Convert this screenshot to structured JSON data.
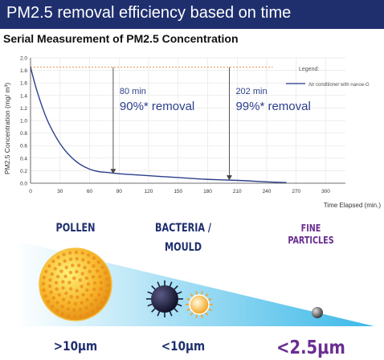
{
  "header": {
    "title": "PM2.5 removal efficiency based on time",
    "banner_color": "#1f2f6e"
  },
  "chart_data": {
    "type": "line",
    "title": "Serial Measurement of PM2.5 Concentration",
    "xlabel": "Time Elapsed (min.)",
    "ylabel": "PM2.5 Concentration (mg/ m³)",
    "xlim": [
      0,
      320
    ],
    "ylim": [
      0,
      2.0
    ],
    "xticks": [
      "0",
      "30",
      "60",
      "90",
      "120",
      "150",
      "180",
      "210",
      "240",
      "270",
      "300"
    ],
    "yticks": [
      "0.0",
      "0.2",
      "0.4",
      "0.6",
      "0.8",
      "1.0",
      "1.2",
      "1.4",
      "1.6",
      "1.8",
      "2.0"
    ],
    "grid": true,
    "legend_title": "Legend:",
    "legend_position": "top-right",
    "series": [
      {
        "name": "Air conditioner with nanoe-G",
        "color": "#2b3f8c",
        "x": [
          0,
          5,
          10,
          15,
          20,
          30,
          40,
          50,
          60,
          70,
          80,
          90,
          100,
          120,
          140,
          160,
          180,
          202,
          220,
          240,
          260
        ],
        "y": [
          1.85,
          1.55,
          1.3,
          1.08,
          0.9,
          0.62,
          0.43,
          0.3,
          0.22,
          0.18,
          0.17,
          0.15,
          0.14,
          0.12,
          0.1,
          0.08,
          0.06,
          0.05,
          0.04,
          0.02,
          0.01
        ]
      }
    ],
    "reference_line": {
      "y": 1.85,
      "color": "#e08030"
    },
    "annotations": [
      {
        "time_label": "80 min",
        "removal_label": "90%* removal",
        "x": 84,
        "y_top": 1.85,
        "y_bottom": 0.15
      },
      {
        "time_label": "202 min",
        "removal_label": "99%* removal",
        "x": 202,
        "y_top": 1.85,
        "y_bottom": 0.05
      }
    ]
  },
  "particles": {
    "pollen": {
      "name": "POLLEN",
      "size": ">10μm",
      "color": "#f5a623"
    },
    "bacteria": {
      "name_line1": "BACTERIA /",
      "name_line2": "MOULD",
      "size": "<10μm",
      "color": "#1a1a3a"
    },
    "fine": {
      "name_line1": "FINE",
      "name_line2": "PARTICLES",
      "size": "<2.5μm",
      "color": "#6a2d91"
    },
    "label_color": "#1f2f6e",
    "wedge_start_color": "#ffffff",
    "wedge_end_color": "#3ab8e8"
  }
}
